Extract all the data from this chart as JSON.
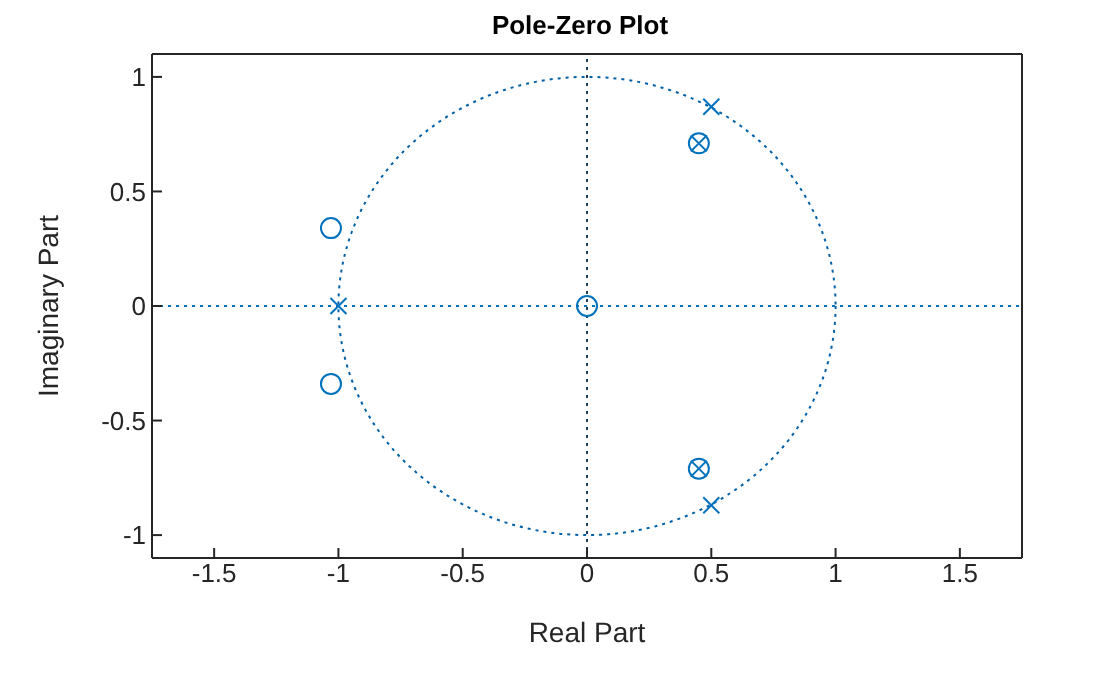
{
  "chart_data": {
    "type": "scatter",
    "title": "Pole-Zero Plot",
    "xlabel": "Real Part",
    "ylabel": "Imaginary Part",
    "xlim": [
      -1.75,
      1.75
    ],
    "xticks": [
      -1.5,
      -1,
      -0.5,
      0,
      0.5,
      1,
      1.5
    ],
    "ylim": [
      -1.1,
      1.1
    ],
    "yticks": [
      -1,
      -0.5,
      0,
      0.5,
      1
    ],
    "grid": false,
    "ref_lines": [
      {
        "axis": "x",
        "value": 0,
        "color": "#1f3f60",
        "line_style": "dotted"
      },
      {
        "axis": "y",
        "value": 0,
        "color": "#0072bd",
        "line_style": "dotted"
      }
    ],
    "series": [
      {
        "marker": "circle",
        "color": "#0072bd",
        "x": [
          -1.03,
          -1.03,
          0,
          0.45,
          0.45
        ],
        "values": [
          0.34,
          -0.34,
          0,
          0.71,
          -0.71
        ]
      },
      {
        "marker": "cross",
        "color": "#0072bd",
        "x": [
          0.5,
          0.5,
          -1,
          0.45,
          0.45
        ],
        "values": [
          0.87,
          -0.87,
          0,
          0.71,
          -0.71
        ]
      }
    ]
  }
}
